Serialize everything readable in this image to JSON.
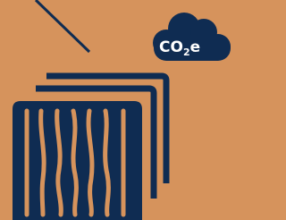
{
  "cloud_label": {
    "main": "CO",
    "sub": "2",
    "suffix": "e"
  }
}
